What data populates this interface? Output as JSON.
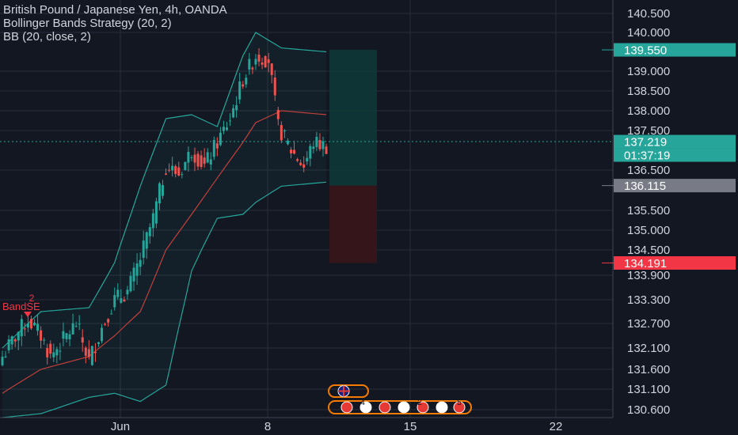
{
  "legend": {
    "symbol": "British Pound / Japanese Yen, 4h, OANDA",
    "strategy": "Bollinger Bands Strategy (20, 2)",
    "indicator": "BB (20, close, 2)"
  },
  "signal": {
    "qty": "2",
    "label": "BandSE",
    "color": "#f23645"
  },
  "colors": {
    "background": "#131722",
    "grid": "#2a2e39",
    "up": "#26a69a",
    "down": "#ef5350",
    "band": "#26a69a",
    "basis": "#c2403a",
    "profit_zone": "#0f3a38",
    "loss_zone": "#3a1518"
  },
  "chart_data": {
    "type": "candlestick",
    "y_ticks": [
      "140.500",
      "140.000",
      "139.000",
      "138.500",
      "138.000",
      "137.500",
      "136.500",
      "135.500",
      "135.000",
      "134.500",
      "133.900",
      "133.300",
      "132.700",
      "132.100",
      "131.600",
      "131.100",
      "130.600"
    ],
    "x_ticks": [
      "Jun",
      "8",
      "15",
      "22"
    ],
    "price_tags": [
      {
        "label": "139.550",
        "kind": "take-profit",
        "color": "#26a69a"
      },
      {
        "label": "137.219",
        "kind": "last-price",
        "color": "#26a69a"
      },
      {
        "label": "01:37:19",
        "kind": "countdown",
        "color": "#26a69a"
      },
      {
        "label": "136.115",
        "kind": "entry",
        "color": "#787b86"
      },
      {
        "label": "134.191",
        "kind": "stop-loss",
        "color": "#f23645"
      }
    ],
    "position": {
      "take_profit": 139.55,
      "entry": 136.115,
      "stop_loss": 134.191
    },
    "candle_close_anchors": [
      [
        0,
        131.9
      ],
      [
        5,
        132.5
      ],
      [
        8,
        132.8
      ],
      [
        12,
        132.4
      ],
      [
        15,
        131.9
      ],
      [
        19,
        132.3
      ],
      [
        23,
        132.7
      ],
      [
        27,
        131.8
      ],
      [
        31,
        132.6
      ],
      [
        35,
        133.3
      ],
      [
        39,
        133.5
      ],
      [
        43,
        134.3
      ],
      [
        47,
        135.3
      ],
      [
        51,
        136.6
      ],
      [
        55,
        136.4
      ],
      [
        59,
        137.0
      ],
      [
        63,
        136.6
      ],
      [
        67,
        137.2
      ],
      [
        71,
        137.8
      ],
      [
        75,
        138.8
      ],
      [
        79,
        139.4
      ],
      [
        83,
        139.3
      ],
      [
        86,
        137.6
      ],
      [
        90,
        137.0
      ],
      [
        94,
        136.6
      ],
      [
        97,
        137.2
      ],
      [
        101,
        137.1
      ]
    ],
    "bands": {
      "upper_anchors": [
        [
          0,
          132.1
        ],
        [
          12,
          133.0
        ],
        [
          27,
          133.1
        ],
        [
          35,
          134.2
        ],
        [
          43,
          136.1
        ],
        [
          51,
          137.8
        ],
        [
          59,
          137.9
        ],
        [
          67,
          137.6
        ],
        [
          75,
          139.4
        ],
        [
          79,
          140.0
        ],
        [
          87,
          139.6
        ],
        [
          101,
          139.5
        ]
      ],
      "basis_anchors": [
        [
          0,
          131.0
        ],
        [
          12,
          131.6
        ],
        [
          27,
          131.9
        ],
        [
          35,
          132.4
        ],
        [
          43,
          133.0
        ],
        [
          51,
          134.5
        ],
        [
          59,
          135.4
        ],
        [
          67,
          136.3
        ],
        [
          75,
          137.2
        ],
        [
          79,
          137.7
        ],
        [
          87,
          138.0
        ],
        [
          101,
          137.9
        ]
      ],
      "lower_anchors": [
        [
          0,
          130.4
        ],
        [
          12,
          130.5
        ],
        [
          27,
          130.9
        ],
        [
          35,
          131.0
        ],
        [
          43,
          130.8
        ],
        [
          51,
          131.2
        ],
        [
          59,
          134.0
        ],
        [
          67,
          135.3
        ],
        [
          75,
          135.4
        ],
        [
          79,
          135.7
        ],
        [
          87,
          136.1
        ],
        [
          101,
          136.2
        ]
      ]
    }
  },
  "events": [
    "gb-flag-icon",
    "economic-events-icon"
  ],
  "events_counts": [
    "4",
    "2",
    "5"
  ]
}
